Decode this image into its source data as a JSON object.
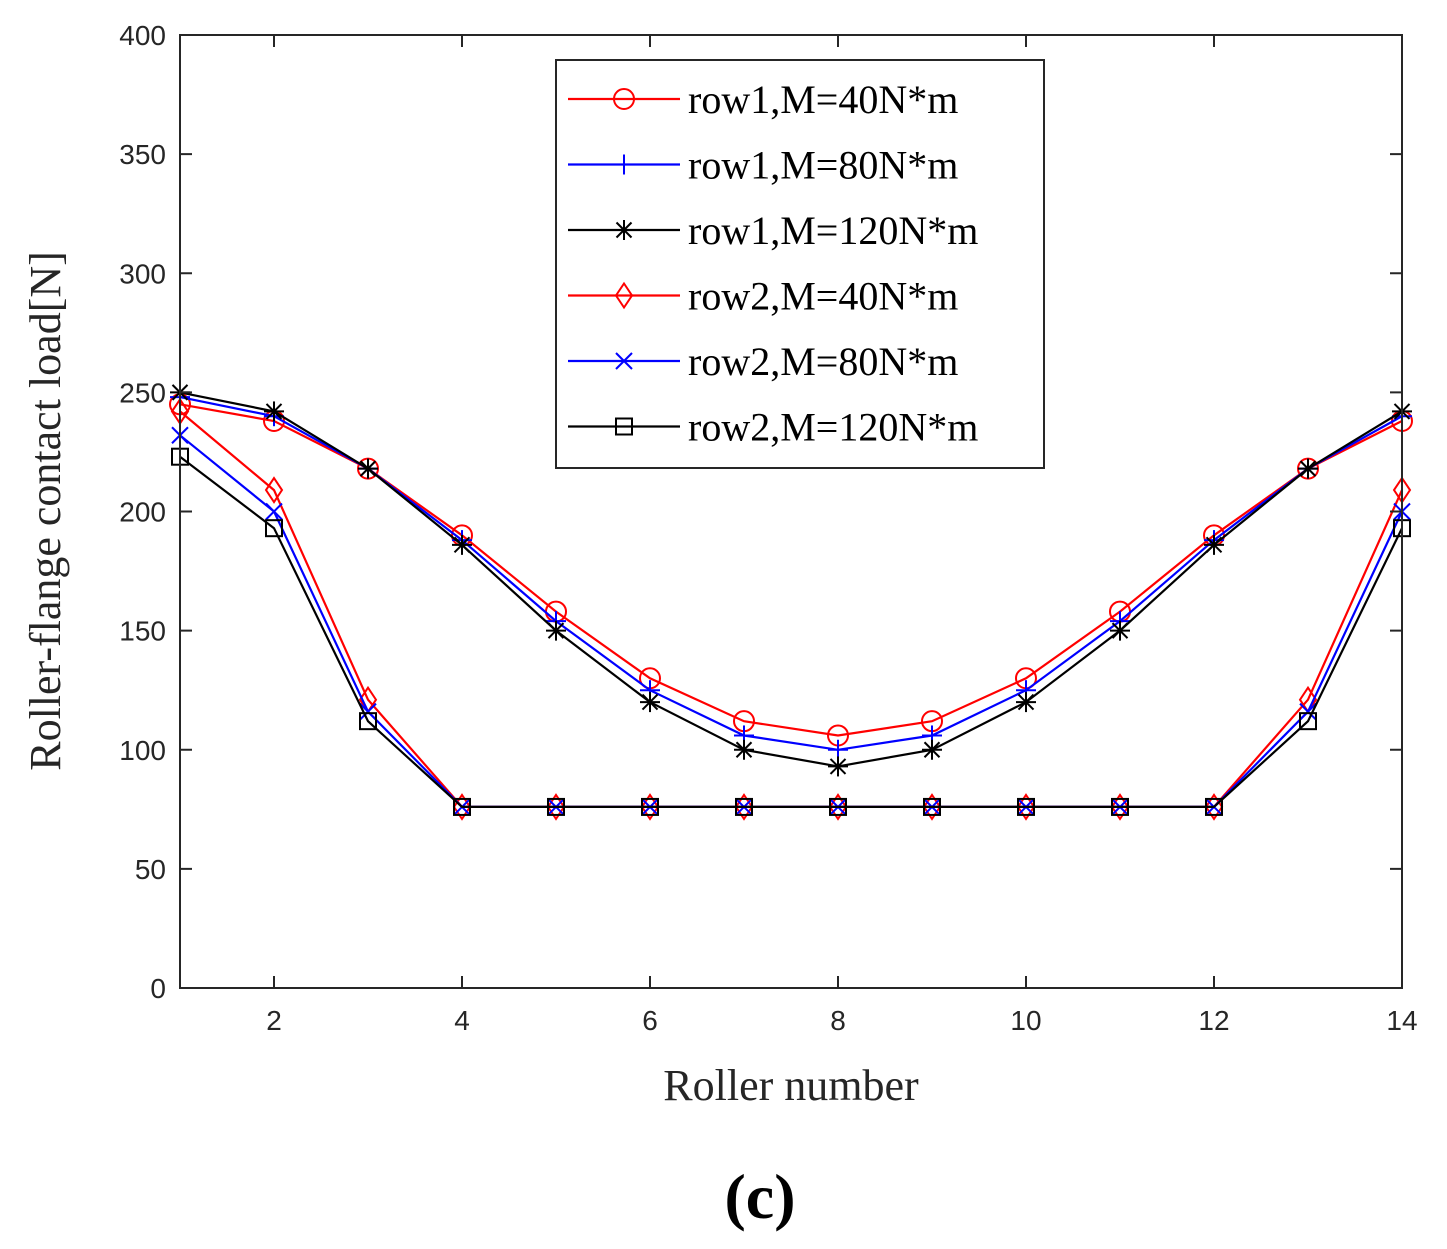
{
  "chart_data": {
    "type": "line",
    "title": "",
    "xlabel": "Roller number",
    "ylabel": "Roller-flange contact load[N]",
    "panel_label": "(c)",
    "xlim": [
      1,
      14
    ],
    "ylim": [
      0,
      400
    ],
    "xticks": [
      2,
      4,
      6,
      8,
      10,
      12,
      14
    ],
    "yticks": [
      0,
      50,
      100,
      150,
      200,
      250,
      300,
      350,
      400
    ],
    "grid": false,
    "legend_position": "top-center",
    "x": [
      1,
      2,
      3,
      4,
      5,
      6,
      7,
      8,
      9,
      10,
      11,
      12,
      13,
      14
    ],
    "series": [
      {
        "name": "row1,M=40N*m",
        "color": "#ff0000",
        "marker": "circle",
        "values": [
          245,
          238,
          218,
          190,
          158,
          130,
          112,
          106,
          112,
          130,
          158,
          190,
          218,
          238
        ]
      },
      {
        "name": "row1,M=80N*m",
        "color": "#0000ff",
        "marker": "plus",
        "values": [
          248,
          240,
          218,
          188,
          154,
          125,
          106,
          100,
          106,
          125,
          154,
          188,
          218,
          240
        ]
      },
      {
        "name": "row1,M=120N*m",
        "color": "#000000",
        "marker": "asterisk",
        "values": [
          250,
          242,
          218,
          186,
          150,
          120,
          100,
          93,
          100,
          120,
          150,
          186,
          218,
          242
        ]
      },
      {
        "name": "row2,M=40N*m",
        "color": "#ff0000",
        "marker": "diamond",
        "values": [
          242,
          209,
          121,
          76,
          76,
          76,
          76,
          76,
          76,
          76,
          76,
          76,
          121,
          209
        ]
      },
      {
        "name": "row2,M=80N*m",
        "color": "#0000ff",
        "marker": "x",
        "values": [
          232,
          200,
          116,
          76,
          76,
          76,
          76,
          76,
          76,
          76,
          76,
          76,
          116,
          200
        ]
      },
      {
        "name": "row2,M=120N*m",
        "color": "#000000",
        "marker": "square",
        "values": [
          223,
          193,
          112,
          76,
          76,
          76,
          76,
          76,
          76,
          76,
          76,
          76,
          112,
          193
        ]
      }
    ]
  }
}
